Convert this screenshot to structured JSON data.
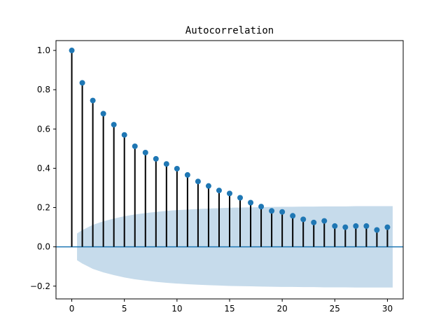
{
  "chart_data": {
    "type": "stem",
    "title": "Autocorrelation",
    "xlabel": "",
    "ylabel": "",
    "xlim": [
      -1.5,
      31.5
    ],
    "ylim": [
      -0.265,
      1.05
    ],
    "x_ticks": [
      0,
      5,
      10,
      15,
      20,
      25,
      30
    ],
    "y_ticks": [
      -0.2,
      0.0,
      0.2,
      0.4,
      0.6,
      0.8,
      1.0
    ],
    "y_tick_labels": [
      "−0.2",
      "0.0",
      "0.2",
      "0.4",
      "0.6",
      "0.8",
      "1.0"
    ],
    "grid": false,
    "lags": [
      0,
      1,
      2,
      3,
      4,
      5,
      6,
      7,
      8,
      9,
      10,
      11,
      12,
      13,
      14,
      15,
      16,
      17,
      18,
      19,
      20,
      21,
      22,
      23,
      24,
      25,
      26,
      27,
      28,
      29,
      30
    ],
    "acf": [
      1.0,
      0.835,
      0.745,
      0.678,
      0.622,
      0.57,
      0.512,
      0.48,
      0.448,
      0.422,
      0.398,
      0.366,
      0.333,
      0.31,
      0.287,
      0.272,
      0.25,
      0.225,
      0.205,
      0.183,
      0.178,
      0.158,
      0.14,
      0.124,
      0.132,
      0.106,
      0.1,
      0.106,
      0.106,
      0.086,
      0.1
    ],
    "confidence_band": {
      "x": [
        0.5,
        1,
        2,
        3,
        4,
        5,
        6,
        7,
        8,
        9,
        10,
        11,
        12,
        13,
        14,
        15,
        16,
        17,
        18,
        19,
        20,
        21,
        22,
        23,
        24,
        25,
        26,
        27,
        28,
        29,
        30,
        30.5
      ],
      "upper": [
        0.068,
        0.085,
        0.112,
        0.13,
        0.144,
        0.156,
        0.165,
        0.172,
        0.178,
        0.183,
        0.187,
        0.19,
        0.193,
        0.195,
        0.197,
        0.199,
        0.2,
        0.201,
        0.202,
        0.203,
        0.204,
        0.204,
        0.205,
        0.205,
        0.206,
        0.206,
        0.206,
        0.207,
        0.207,
        0.207,
        0.207,
        0.207
      ]
    },
    "colors": {
      "marker": "#1f77b4",
      "stem": "#000000",
      "zero_line": "#1f77b4",
      "band": "#c6dbeb"
    }
  }
}
